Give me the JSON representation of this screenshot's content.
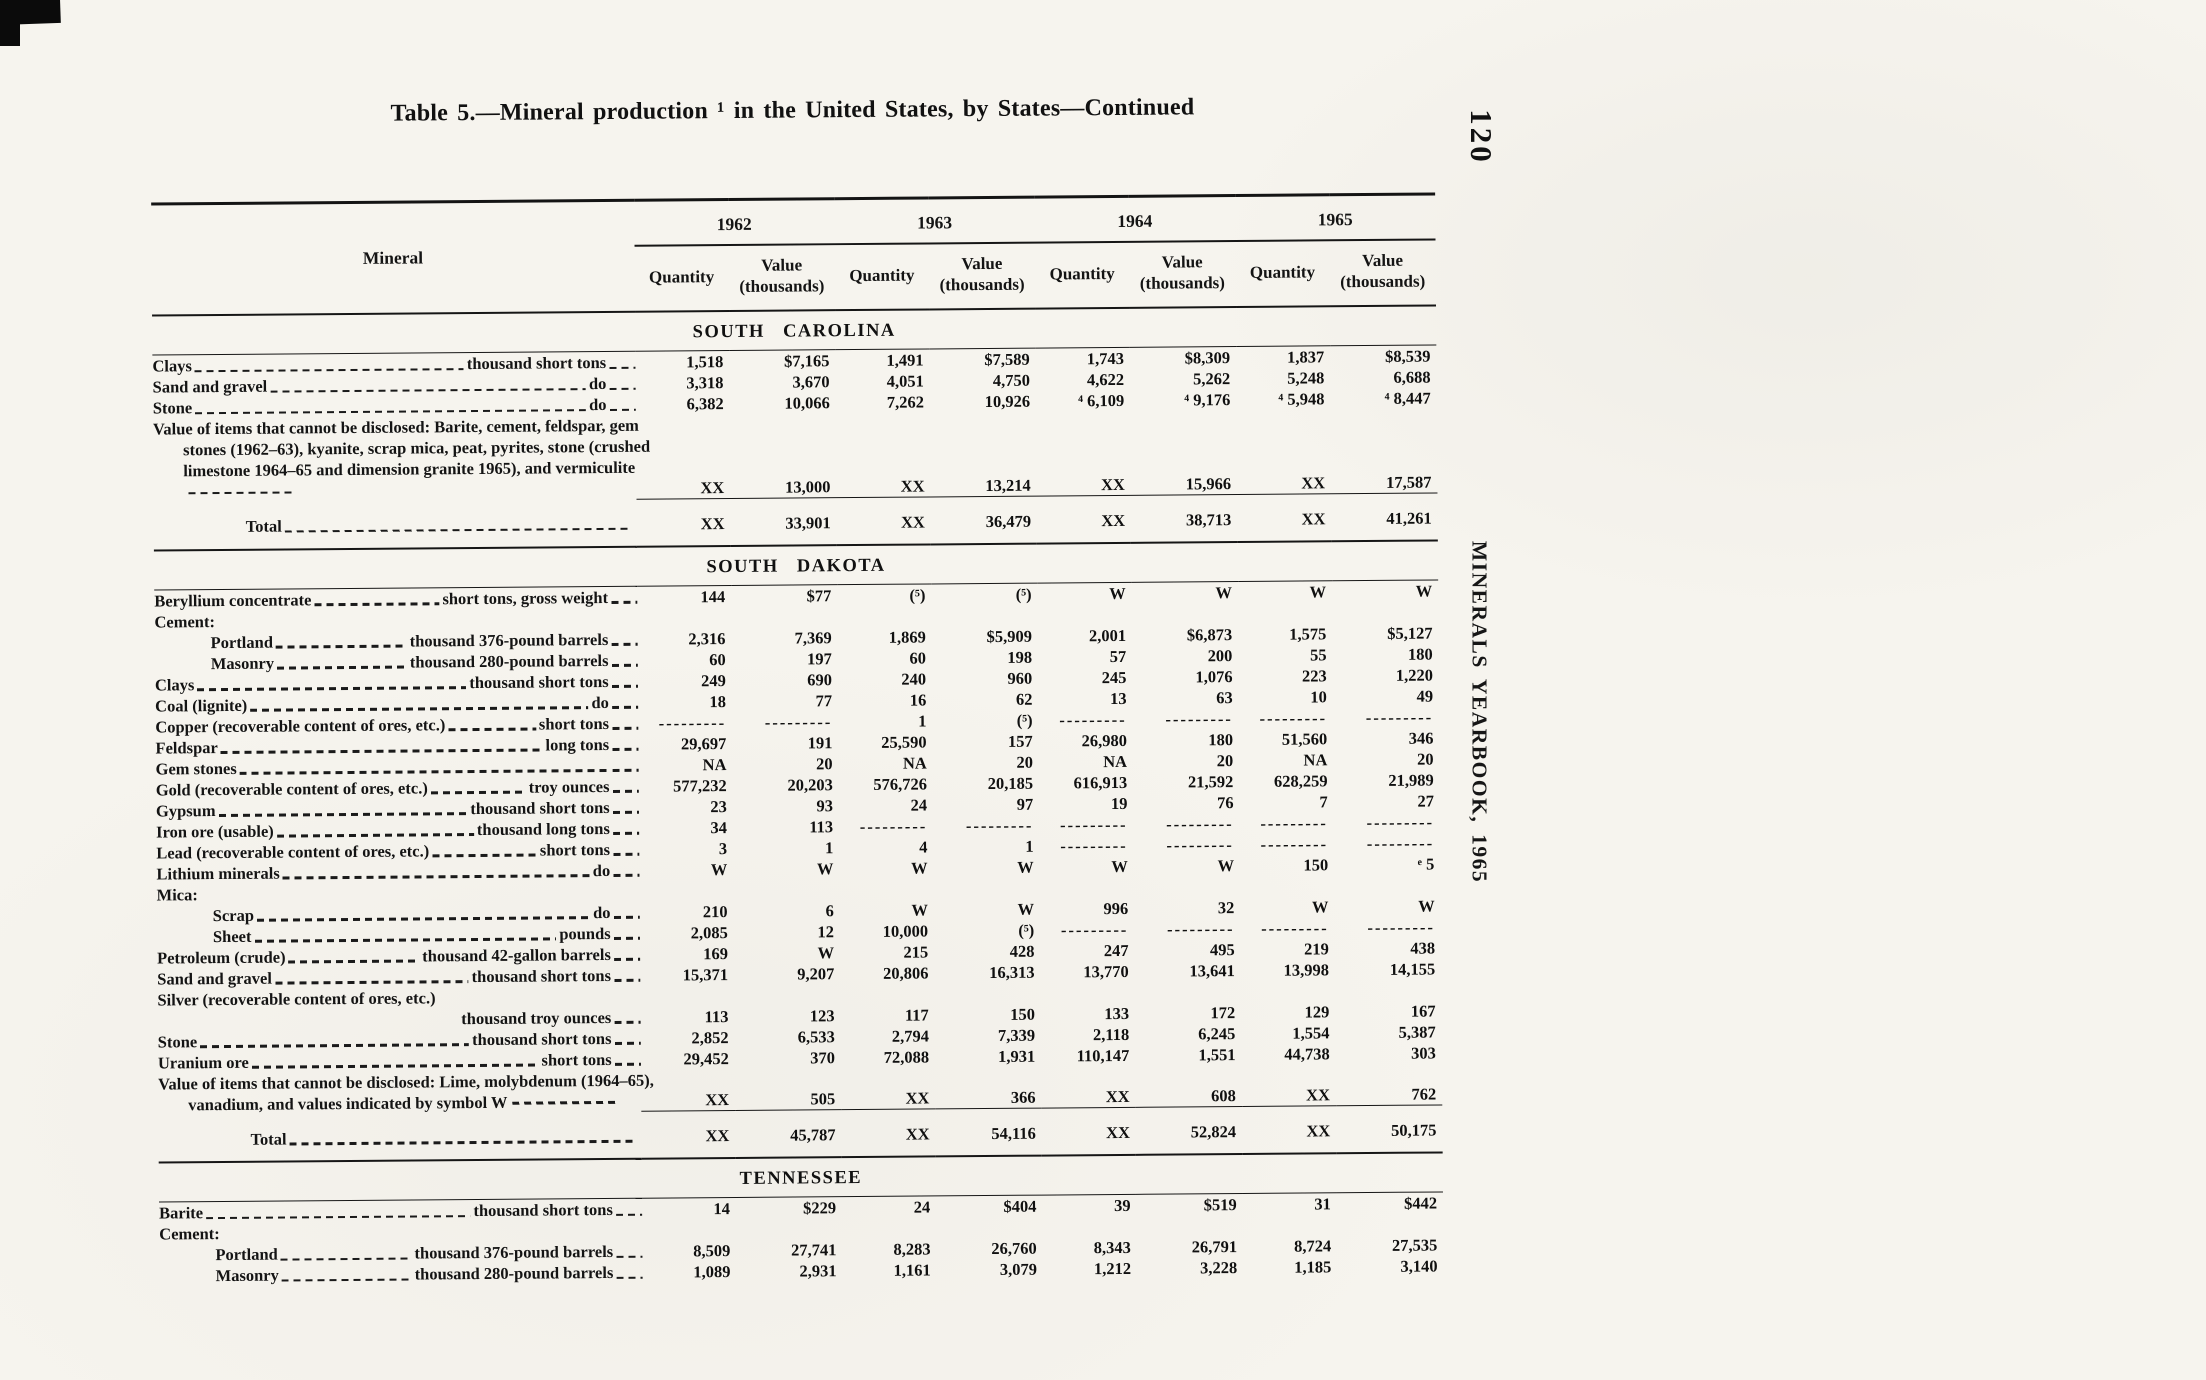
{
  "page": {
    "title": "Table 5.—Mineral production ¹ in the United States, by States—Continued",
    "page_number": "120",
    "side_text": "MINERALS YEARBOOK, 1965"
  },
  "table": {
    "mineral_header": "Mineral",
    "quantity_label": "Quantity",
    "value_label": "Value",
    "value_sub": "(thousands)",
    "years": [
      "1962",
      "1963",
      "1964",
      "1965"
    ],
    "sections": [
      {
        "name": "SOUTH CAROLINA",
        "rows": [
          {
            "label": "Clays",
            "unit": "thousand short tons",
            "values": [
              "1,518",
              "$7,165",
              "1,491",
              "$7,589",
              "1,743",
              "$8,309",
              "1,837",
              "$8,539"
            ]
          },
          {
            "label": "Sand and gravel",
            "unit": "do",
            "values": [
              "3,318",
              "3,670",
              "4,051",
              "4,750",
              "4,622",
              "5,262",
              "5,248",
              "6,688"
            ]
          },
          {
            "label": "Stone",
            "unit": "do",
            "values": [
              "6,382",
              "10,066",
              "7,262",
              "10,926",
              "⁴ 6,109",
              "⁴ 9,176",
              "⁴ 5,948",
              "⁴ 8,447"
            ]
          },
          {
            "label": "Value of items that cannot be disclosed: Barite, cement, feldspar, gem stones (1962–63), kyanite, scrap mica, peat, pyrites, stone (crushed limestone 1964–65 and dimension granite 1965), and vermiculite",
            "type": "note",
            "values": [
              "XX",
              "13,000",
              "XX",
              "13,214",
              "XX",
              "15,966",
              "XX",
              "17,587"
            ]
          },
          {
            "label": "Total",
            "type": "total",
            "values": [
              "XX",
              "33,901",
              "XX",
              "36,479",
              "XX",
              "38,713",
              "XX",
              "41,261"
            ]
          }
        ]
      },
      {
        "name": "SOUTH DAKOTA",
        "rows": [
          {
            "label": "Beryllium concentrate",
            "unit": "short tons, gross weight",
            "values": [
              "144",
              "$77",
              "(⁵)",
              "(⁵)",
              "W",
              "W",
              "W",
              "W"
            ]
          },
          {
            "label": "Cement:",
            "type": "group"
          },
          {
            "label": "Portland",
            "unit": "thousand 376-pound barrels",
            "indent": 1,
            "values": [
              "2,316",
              "7,369",
              "1,869",
              "$5,909",
              "2,001",
              "$6,873",
              "1,575",
              "$5,127"
            ]
          },
          {
            "label": "Masonry",
            "unit": "thousand 280-pound barrels",
            "indent": 1,
            "values": [
              "60",
              "197",
              "60",
              "198",
              "57",
              "200",
              "55",
              "180"
            ]
          },
          {
            "label": "Clays",
            "unit": "thousand short tons",
            "values": [
              "249",
              "690",
              "240",
              "960",
              "245",
              "1,076",
              "223",
              "1,220"
            ]
          },
          {
            "label": "Coal (lignite)",
            "unit": "do",
            "values": [
              "18",
              "77",
              "16",
              "62",
              "13",
              "63",
              "10",
              "49"
            ]
          },
          {
            "label": "Copper (recoverable content of ores, etc.)",
            "unit": "short tons",
            "values": [
              "---------",
              "---------",
              "1",
              "(⁵)",
              "---------",
              "---------",
              "---------",
              "---------"
            ]
          },
          {
            "label": "Feldspar",
            "unit": "long tons",
            "values": [
              "29,697",
              "191",
              "25,590",
              "157",
              "26,980",
              "180",
              "51,560",
              "346"
            ]
          },
          {
            "label": "Gem stones",
            "unit": "",
            "values": [
              "NA",
              "20",
              "NA",
              "20",
              "NA",
              "20",
              "NA",
              "20"
            ]
          },
          {
            "label": "Gold (recoverable content of ores, etc.)",
            "unit": "troy ounces",
            "values": [
              "577,232",
              "20,203",
              "576,726",
              "20,185",
              "616,913",
              "21,592",
              "628,259",
              "21,989"
            ]
          },
          {
            "label": "Gypsum",
            "unit": "thousand short tons",
            "values": [
              "23",
              "93",
              "24",
              "97",
              "19",
              "76",
              "7",
              "27"
            ]
          },
          {
            "label": "Iron ore (usable)",
            "unit": "thousand long tons",
            "values": [
              "34",
              "113",
              "---------",
              "---------",
              "---------",
              "---------",
              "---------",
              "---------"
            ]
          },
          {
            "label": "Lead (recoverable content of ores, etc.)",
            "unit": "short tons",
            "values": [
              "3",
              "1",
              "4",
              "1",
              "---------",
              "---------",
              "---------",
              "---------"
            ]
          },
          {
            "label": "Lithium minerals",
            "unit": "do",
            "values": [
              "W",
              "W",
              "W",
              "W",
              "W",
              "W",
              "150",
              "ᵉ 5"
            ]
          },
          {
            "label": "Mica:",
            "type": "group"
          },
          {
            "label": "Scrap",
            "unit": "do",
            "indent": 1,
            "values": [
              "210",
              "6",
              "W",
              "W",
              "996",
              "32",
              "W",
              "W"
            ]
          },
          {
            "label": "Sheet",
            "unit": "pounds",
            "indent": 1,
            "values": [
              "2,085",
              "12",
              "10,000",
              "(⁵)",
              "---------",
              "---------",
              "---------",
              "---------"
            ]
          },
          {
            "label": "Petroleum (crude)",
            "unit": "thousand 42-gallon barrels",
            "values": [
              "169",
              "W",
              "215",
              "428",
              "247",
              "495",
              "219",
              "438"
            ]
          },
          {
            "label": "Sand and gravel",
            "unit": "thousand short tons",
            "values": [
              "15,371",
              "9,207",
              "20,806",
              "16,313",
              "13,770",
              "13,641",
              "13,998",
              "14,155"
            ]
          },
          {
            "label": "Silver (recoverable content of ores, etc.)",
            "unit": "thousand troy ounces",
            "type": "data2",
            "values": [
              "113",
              "123",
              "117",
              "150",
              "133",
              "172",
              "129",
              "167"
            ]
          },
          {
            "label": "Stone",
            "unit": "thousand short tons",
            "values": [
              "2,852",
              "6,533",
              "2,794",
              "7,339",
              "2,118",
              "6,245",
              "1,554",
              "5,387"
            ]
          },
          {
            "label": "Uranium ore",
            "unit": "short tons",
            "values": [
              "29,452",
              "370",
              "72,088",
              "1,931",
              "110,147",
              "1,551",
              "44,738",
              "303"
            ]
          },
          {
            "label": "Value of items that cannot be disclosed: Lime, molybdenum (1964–65), vanadium, and values indicated by symbol W",
            "type": "note",
            "values": [
              "XX",
              "505",
              "XX",
              "366",
              "XX",
              "608",
              "XX",
              "762"
            ]
          },
          {
            "label": "Total",
            "type": "total",
            "values": [
              "XX",
              "45,787",
              "XX",
              "54,116",
              "XX",
              "52,824",
              "XX",
              "50,175"
            ]
          }
        ]
      },
      {
        "name": "TENNESSEE",
        "rows": [
          {
            "label": "Barite",
            "unit": "thousand short tons",
            "values": [
              "14",
              "$229",
              "24",
              "$404",
              "39",
              "$519",
              "31",
              "$442"
            ]
          },
          {
            "label": "Cement:",
            "type": "group"
          },
          {
            "label": "Portland",
            "unit": "thousand 376-pound barrels",
            "indent": 1,
            "values": [
              "8,509",
              "27,741",
              "8,283",
              "26,760",
              "8,343",
              "26,791",
              "8,724",
              "27,535"
            ]
          },
          {
            "label": "Masonry",
            "unit": "thousand 280-pound barrels",
            "indent": 1,
            "values": [
              "1,089",
              "2,931",
              "1,161",
              "3,079",
              "1,212",
              "3,228",
              "1,185",
              "3,140"
            ]
          }
        ]
      }
    ]
  }
}
